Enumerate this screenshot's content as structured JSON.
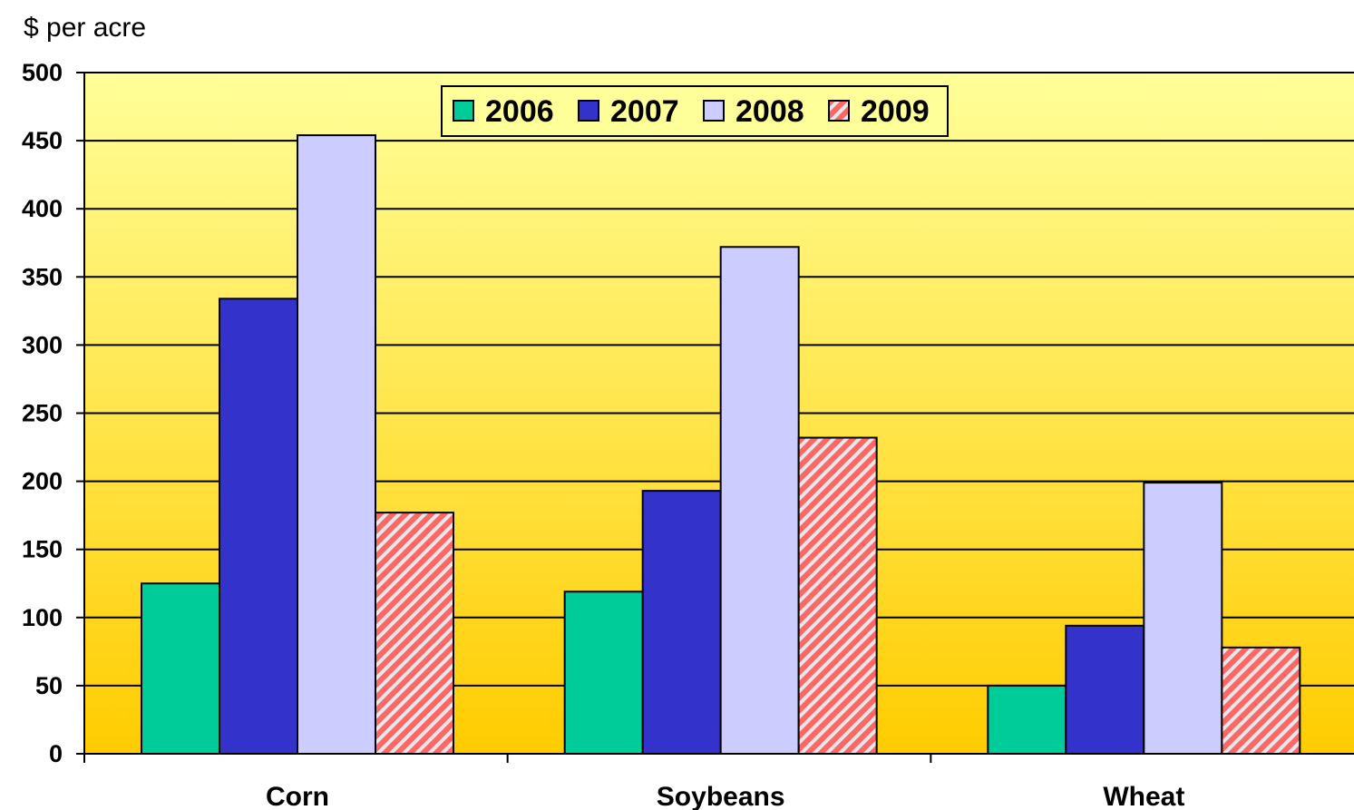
{
  "chart_data": {
    "type": "bar",
    "title": "",
    "ylabel": "$ per acre",
    "xlabel": "",
    "ylim": [
      0,
      500
    ],
    "yticks": [
      "0",
      "50",
      "100",
      "150",
      "200",
      "250",
      "300",
      "350",
      "400",
      "450",
      "500"
    ],
    "categories": [
      "Corn",
      "Soybeans",
      "Wheat"
    ],
    "series": [
      {
        "name": "2006",
        "values": [
          125,
          119,
          50
        ],
        "color": "#00cc99",
        "pattern": "solid"
      },
      {
        "name": "2007",
        "values": [
          334,
          193,
          94
        ],
        "color": "#3333cc",
        "pattern": "solid"
      },
      {
        "name": "2008",
        "values": [
          454,
          372,
          199
        ],
        "color": "#ccccff",
        "pattern": "solid"
      },
      {
        "name": "2009",
        "values": [
          177,
          232,
          78
        ],
        "color": "#ff6666",
        "pattern": "diagonal-hatch"
      }
    ],
    "legend": "top-center, inside plot",
    "grid": true,
    "background": {
      "top_color": "#ffff99",
      "bottom_color": "#ffcc00"
    }
  }
}
